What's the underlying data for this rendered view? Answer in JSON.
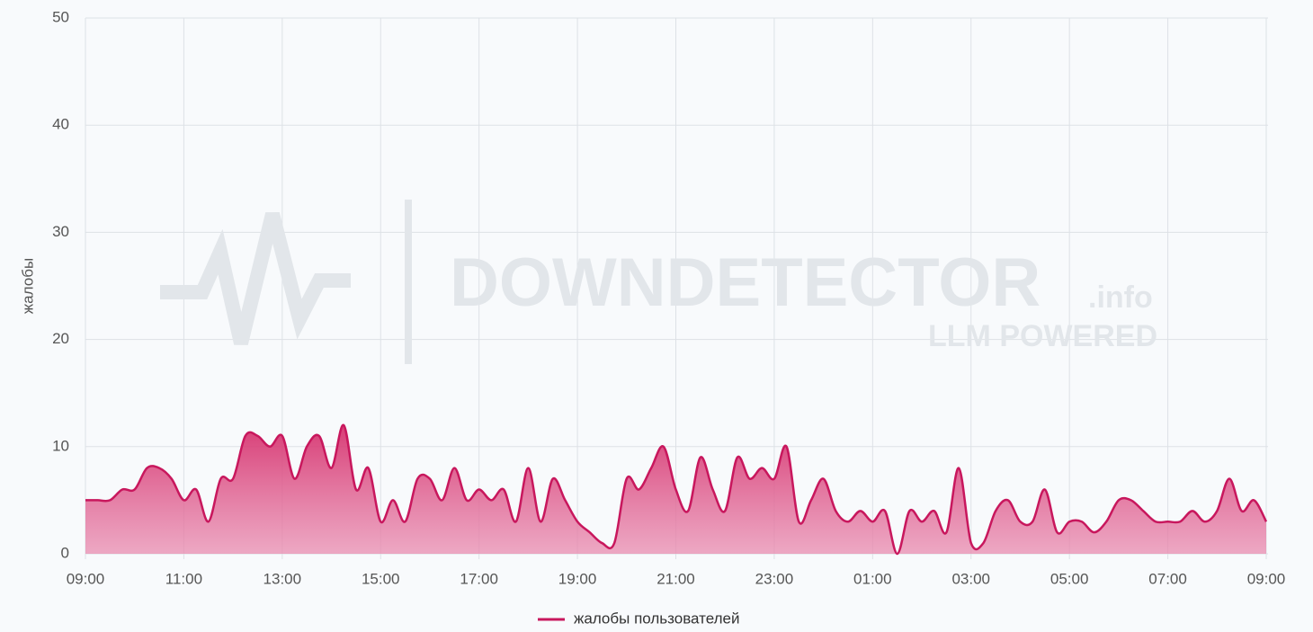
{
  "chart_data": {
    "type": "area",
    "watermark": {
      "brand": "DOWNDETECTOR",
      "suffix": ".info",
      "tagline": "LLM POWERED"
    },
    "y_label": "жалобы",
    "categories": [
      "09:00",
      null,
      null,
      null,
      null,
      null,
      null,
      null,
      "11:00",
      null,
      null,
      null,
      null,
      null,
      null,
      null,
      "13:00",
      null,
      null,
      null,
      null,
      null,
      null,
      null,
      "15:00",
      null,
      null,
      null,
      null,
      null,
      null,
      null,
      "17:00",
      null,
      null,
      null,
      null,
      null,
      null,
      null,
      "19:00",
      null,
      null,
      null,
      null,
      null,
      null,
      null,
      "21:00",
      null,
      null,
      null,
      null,
      null,
      null,
      null,
      "23:00",
      null,
      null,
      null,
      null,
      null,
      null,
      null,
      "01:00",
      null,
      null,
      null,
      null,
      null,
      null,
      null,
      "03:00",
      null,
      null,
      null,
      null,
      null,
      null,
      null,
      "05:00",
      null,
      null,
      null,
      null,
      null,
      null,
      null,
      "07:00",
      null,
      null,
      null,
      null,
      null,
      null,
      null,
      "09:00"
    ],
    "series": [
      {
        "name": "жалобы пользователей",
        "color": "#c8175d",
        "values": [
          5,
          5,
          5,
          6,
          6,
          8,
          8,
          7,
          5,
          6,
          3,
          7,
          7,
          11,
          11,
          10,
          11,
          7,
          10,
          11,
          8,
          12,
          6,
          8,
          3,
          5,
          3,
          7,
          7,
          5,
          8,
          5,
          6,
          5,
          6,
          3,
          8,
          3,
          7,
          5,
          3,
          2,
          1,
          1,
          7,
          6,
          8,
          10,
          6,
          4,
          9,
          6,
          4,
          9,
          7,
          8,
          7,
          10,
          3,
          5,
          7,
          4,
          3,
          4,
          3,
          4,
          0,
          4,
          3,
          4,
          2,
          8,
          1,
          1,
          4,
          5,
          3,
          3,
          6,
          2,
          3,
          3,
          2,
          3,
          5,
          5,
          4,
          3,
          3,
          3,
          4,
          3,
          4,
          7,
          4,
          5,
          3
        ]
      }
    ],
    "ylim": [
      0,
      50
    ],
    "yticks": [
      0,
      10,
      20,
      30,
      40,
      50
    ],
    "grid": true,
    "legend": "bottom"
  }
}
